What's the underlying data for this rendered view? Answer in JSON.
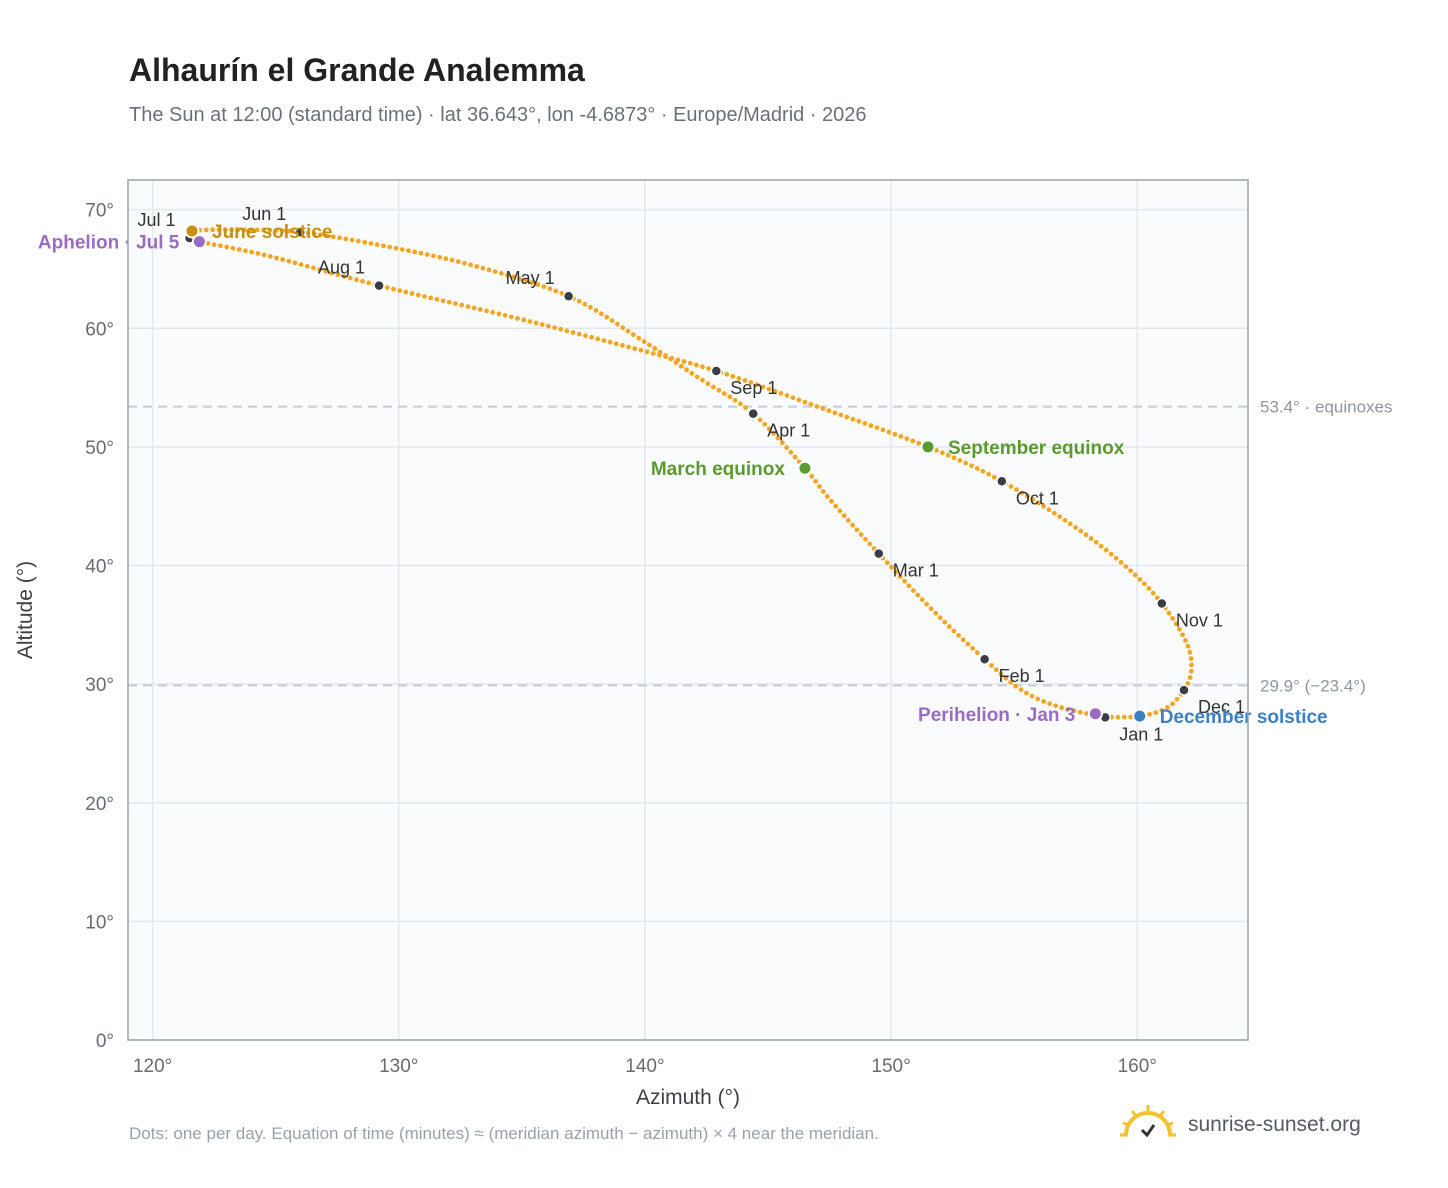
{
  "header": {
    "title": "Alhaurín el Grande Analemma",
    "subtitle": "The Sun at 12:00 (standard time) · lat 36.643°, lon -4.6873° · Europe/Madrid · 2026"
  },
  "footer": {
    "note": "Dots: one per day. Equation of time (minutes) ≈ (meridian azimuth − azimuth) × 4 near the meridian.",
    "brand": "sunrise-sunset.org",
    "brand_icon": "sun-icon"
  },
  "colors": {
    "curve": "#f2a623",
    "month_dot": "#3a3d44",
    "equinox": "#5a9a2e",
    "june_solstice": "#c8900e",
    "december_solstice": "#3b7fc4",
    "apsis": "#9a6cc1",
    "plot_bg": "#f9fbfd",
    "grid": "#e3e7ee",
    "ref_line": "#c3ccd8",
    "axis": "#9aa3b0"
  },
  "chart_data": {
    "type": "scatter",
    "title": "Alhaurín el Grande Analemma",
    "xlabel": "Azimuth (°)",
    "ylabel": "Altitude (°)",
    "xlim": [
      119,
      164.5
    ],
    "ylim": [
      0,
      72.5
    ],
    "xticks": [
      120,
      130,
      140,
      150,
      160
    ],
    "yticks": [
      0,
      10,
      20,
      30,
      40,
      50,
      60,
      70
    ],
    "tick_suffix": "°",
    "grid": true,
    "months": [
      {
        "label": "Jan 1",
        "az": 158.7,
        "alt": 27.2,
        "anchor": "start"
      },
      {
        "label": "Feb 1",
        "az": 153.8,
        "alt": 32.1,
        "anchor": "start"
      },
      {
        "label": "Mar 1",
        "az": 149.5,
        "alt": 41.0,
        "anchor": "start"
      },
      {
        "label": "Apr 1",
        "az": 144.4,
        "alt": 52.8,
        "anchor": "start"
      },
      {
        "label": "May 1",
        "az": 136.9,
        "alt": 62.7,
        "anchor": "end"
      },
      {
        "label": "Jun 1",
        "az": 126.0,
        "alt": 68.1,
        "anchor": "end"
      },
      {
        "label": "Jul 1",
        "az": 121.5,
        "alt": 67.6,
        "anchor": "end"
      },
      {
        "label": "Aug 1",
        "az": 129.2,
        "alt": 63.6,
        "anchor": "end"
      },
      {
        "label": "Sep 1",
        "az": 142.9,
        "alt": 56.4,
        "anchor": "start"
      },
      {
        "label": "Oct 1",
        "az": 154.5,
        "alt": 47.1,
        "anchor": "start"
      },
      {
        "label": "Nov 1",
        "az": 161.0,
        "alt": 36.8,
        "anchor": "start"
      },
      {
        "label": "Dec 1",
        "az": 161.9,
        "alt": 29.5,
        "anchor": "start"
      }
    ],
    "events": [
      {
        "label": "March equinox",
        "az": 146.5,
        "alt": 48.2,
        "color": "#5a9a2e",
        "anchor": "end"
      },
      {
        "label": "September equinox",
        "az": 151.5,
        "alt": 50.0,
        "color": "#5a9a2e",
        "anchor": "start"
      },
      {
        "label": "June solstice",
        "az": 121.6,
        "alt": 68.2,
        "color": "#c8900e",
        "anchor": "start"
      },
      {
        "label": "December solstice",
        "az": 160.1,
        "alt": 27.3,
        "color": "#3b7fc4",
        "anchor": "start"
      },
      {
        "label": "Aphelion · Jul 5",
        "az": 121.9,
        "alt": 67.3,
        "color": "#9a6cc1",
        "anchor": "end"
      },
      {
        "label": "Perihelion · Jan 3",
        "az": 158.3,
        "alt": 27.5,
        "color": "#9a6cc1",
        "anchor": "end"
      }
    ],
    "reference_lines": [
      {
        "alt": 53.4,
        "label": "53.4° · equinoxes"
      },
      {
        "alt": 29.9,
        "label": "29.9° (−23.4°)"
      }
    ],
    "curve_path": [
      [
        158.7,
        27.2
      ],
      [
        156.8,
        28.1
      ],
      [
        155.3,
        29.5
      ],
      [
        153.8,
        32.1
      ],
      [
        151.8,
        36.0
      ],
      [
        149.5,
        41.0
      ],
      [
        147.5,
        45.6
      ],
      [
        146.5,
        48.2
      ],
      [
        144.4,
        52.8
      ],
      [
        142.2,
        55.8
      ],
      [
        139.8,
        59.1
      ],
      [
        136.9,
        62.7
      ],
      [
        133.0,
        65.3
      ],
      [
        129.5,
        66.9
      ],
      [
        126.0,
        68.1
      ],
      [
        123.3,
        68.3
      ],
      [
        121.6,
        68.2
      ],
      [
        121.5,
        67.6
      ],
      [
        121.9,
        67.3
      ],
      [
        124.7,
        66.1
      ],
      [
        129.2,
        63.6
      ],
      [
        134.5,
        61.0
      ],
      [
        139.0,
        58.6
      ],
      [
        142.9,
        56.4
      ],
      [
        147.0,
        53.4
      ],
      [
        151.5,
        50.0
      ],
      [
        154.5,
        47.1
      ],
      [
        157.5,
        43.2
      ],
      [
        159.6,
        39.8
      ],
      [
        161.0,
        36.8
      ],
      [
        162.0,
        33.5
      ],
      [
        162.2,
        31.2
      ],
      [
        161.9,
        29.5
      ],
      [
        161.2,
        28.0
      ],
      [
        160.1,
        27.3
      ],
      [
        158.7,
        27.2
      ]
    ]
  }
}
